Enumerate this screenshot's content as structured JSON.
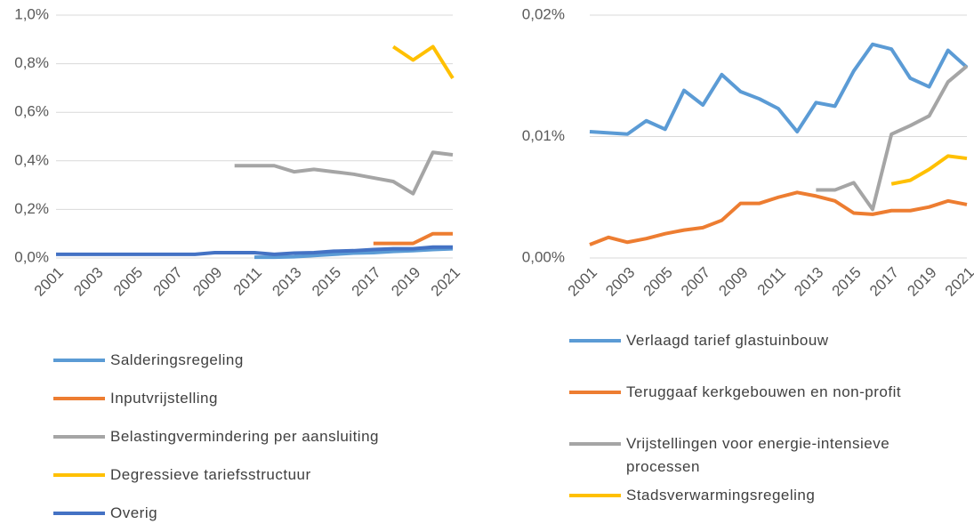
{
  "chart_data": [
    {
      "type": "line",
      "x": [
        2001,
        2002,
        2003,
        2004,
        2005,
        2006,
        2007,
        2008,
        2009,
        2010,
        2011,
        2012,
        2013,
        2014,
        2015,
        2016,
        2017,
        2018,
        2019,
        2020,
        2021
      ],
      "xlim": [
        2001,
        2021
      ],
      "xticks": [
        2001,
        2003,
        2005,
        2007,
        2009,
        2011,
        2013,
        2015,
        2017,
        2019,
        2021
      ],
      "ylim": [
        0,
        1
      ],
      "yticks": [
        {
          "value": 0,
          "label": "0,0%"
        },
        {
          "value": 0.2,
          "label": "0,2%"
        },
        {
          "value": 0.4,
          "label": "0,4%"
        },
        {
          "value": 0.6,
          "label": "0,6%"
        },
        {
          "value": 0.8,
          "label": "0,8%"
        },
        {
          "value": 1,
          "label": "1,0%"
        }
      ],
      "grid": true,
      "series": [
        {
          "name": "Salderingsregeling",
          "color": "#5b9bd5",
          "values": [
            null,
            null,
            null,
            null,
            null,
            null,
            null,
            null,
            null,
            null,
            0.003,
            0.003,
            0.005,
            0.01,
            0.015,
            0.02,
            0.022,
            0.027,
            0.03,
            0.035,
            0.038
          ]
        },
        {
          "name": "Inputvrijstelling",
          "color": "#ed7d31",
          "values": [
            null,
            null,
            null,
            null,
            null,
            null,
            null,
            null,
            null,
            null,
            null,
            null,
            null,
            null,
            null,
            null,
            0.06,
            0.06,
            0.06,
            0.1,
            0.1
          ]
        },
        {
          "name": "Belastingvermindering per aansluiting",
          "color": "#a5a5a5",
          "values": [
            null,
            null,
            null,
            null,
            null,
            null,
            null,
            null,
            null,
            0.38,
            0.38,
            0.38,
            0.355,
            0.365,
            0.355,
            0.345,
            0.33,
            0.315,
            0.265,
            0.435,
            0.425
          ]
        },
        {
          "name": "Degressieve tariefsstructuur",
          "color": "#ffc000",
          "values": [
            null,
            null,
            null,
            null,
            null,
            null,
            null,
            null,
            null,
            null,
            null,
            null,
            null,
            null,
            null,
            null,
            null,
            0.87,
            0.815,
            0.87,
            0.74
          ]
        },
        {
          "name": "Overig",
          "color": "#4472c4",
          "values": [
            0.015,
            0.015,
            0.015,
            0.015,
            0.015,
            0.015,
            0.015,
            0.015,
            0.022,
            0.022,
            0.022,
            0.015,
            0.02,
            0.022,
            0.028,
            0.03,
            0.035,
            0.038,
            0.038,
            0.045,
            0.045
          ]
        }
      ]
    },
    {
      "type": "line",
      "x": [
        2001,
        2002,
        2003,
        2004,
        2005,
        2006,
        2007,
        2008,
        2009,
        2010,
        2011,
        2012,
        2013,
        2014,
        2015,
        2016,
        2017,
        2018,
        2019,
        2020,
        2021
      ],
      "xlim": [
        2001,
        2021
      ],
      "xticks": [
        2001,
        2003,
        2005,
        2007,
        2009,
        2011,
        2013,
        2015,
        2017,
        2019,
        2021
      ],
      "ylim": [
        0,
        0.02
      ],
      "yticks": [
        {
          "value": 0,
          "label": "0,00%"
        },
        {
          "value": 0.01,
          "label": "0,01%"
        },
        {
          "value": 0.02,
          "label": "0,02%"
        }
      ],
      "grid": true,
      "series": [
        {
          "name": "Verlaagd tarief glastuinbouw",
          "color": "#5b9bd5",
          "values": [
            0.0104,
            0.0103,
            0.0102,
            0.0113,
            0.0106,
            0.0138,
            0.0126,
            0.0151,
            0.0137,
            0.0131,
            0.0123,
            0.0104,
            0.0128,
            0.0125,
            0.0154,
            0.0176,
            0.0172,
            0.0148,
            0.0141,
            0.0171,
            0.0157
          ]
        },
        {
          "name": "Teruggaaf kerkgebouwen en non-profit",
          "color": "#ed7d31",
          "values": [
            0.0011,
            0.0017,
            0.0013,
            0.0016,
            0.002,
            0.0023,
            0.0025,
            0.0031,
            0.0045,
            0.0045,
            0.005,
            0.0054,
            0.0051,
            0.0047,
            0.0037,
            0.0036,
            0.0039,
            0.0039,
            0.0042,
            0.0047,
            0.0044
          ]
        },
        {
          "name": "Vrijstellingen voor energie-intensieve processen",
          "color": "#a5a5a5",
          "values": [
            null,
            null,
            null,
            null,
            null,
            null,
            null,
            null,
            null,
            null,
            null,
            null,
            0.0056,
            0.0056,
            0.0062,
            0.004,
            0.0102,
            0.0109,
            0.0117,
            0.0145,
            0.0158
          ]
        },
        {
          "name": "Stadsverwarmingsregeling",
          "color": "#ffc000",
          "values": [
            null,
            null,
            null,
            null,
            null,
            null,
            null,
            null,
            null,
            null,
            null,
            null,
            null,
            null,
            null,
            null,
            0.0061,
            0.0064,
            0.0073,
            0.0084,
            0.0082
          ]
        }
      ]
    }
  ]
}
